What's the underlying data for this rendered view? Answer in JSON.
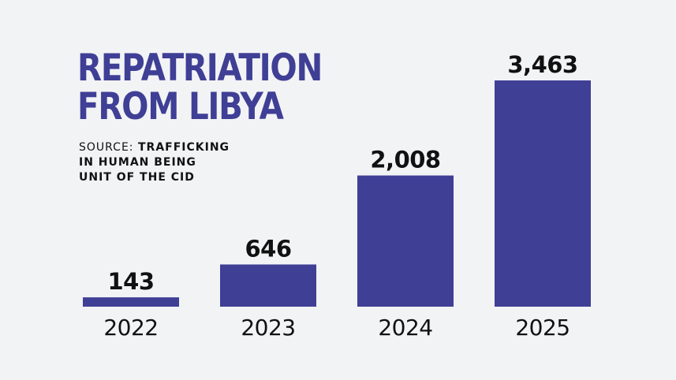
{
  "title": {
    "line1": "REPATRIATION",
    "line2": "FROM LIBYA"
  },
  "source": {
    "label": "SOURCE:",
    "line1": "TRAFFICKING",
    "line2": "IN HUMAN BEING",
    "line3": "UNIT OF THE CID"
  },
  "colors": {
    "bar": "#3f3f96",
    "background": "#f2f3f5",
    "text": "#111111"
  },
  "chart_data": {
    "type": "bar",
    "title": "REPATRIATION FROM LIBYA",
    "categories": [
      "2022",
      "2023",
      "2024",
      "2025"
    ],
    "values": [
      143,
      646,
      2008,
      3463
    ],
    "value_labels": [
      "143",
      "646",
      "2,008",
      "3,463"
    ],
    "ylim": [
      0,
      3463
    ],
    "grid": false,
    "legend": "none"
  }
}
